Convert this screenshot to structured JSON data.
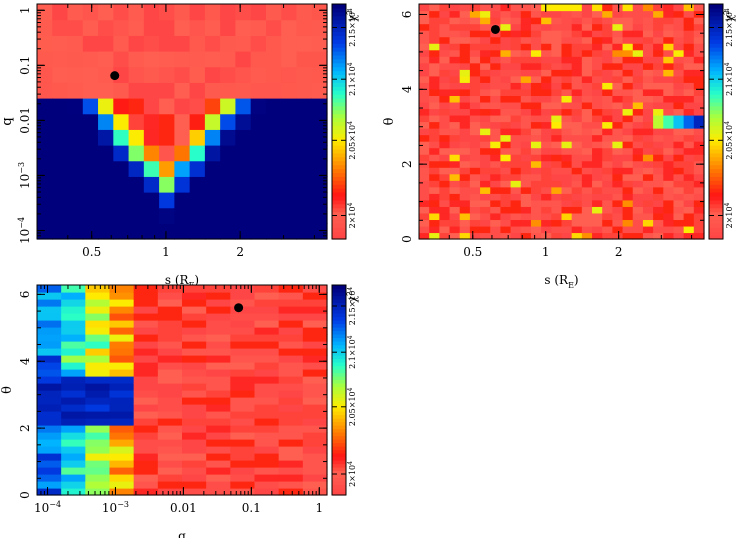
{
  "chart_data": [
    {
      "type": "heatmap",
      "xlabel": "s (R",
      "xlabel_sub": "E",
      "xlabel_close": ")",
      "ylabel": "q",
      "x_scale": "log",
      "y_scale": "log",
      "x_range": [
        0.3,
        4.5
      ],
      "y_range": [
        7e-05,
        1.3
      ],
      "x_ticks": [
        {
          "v": 0.5,
          "label": "0.5"
        },
        {
          "v": 1,
          "label": "1"
        },
        {
          "v": 2,
          "label": "2"
        }
      ],
      "y_ticks": [
        {
          "v": 0.0001,
          "label": "10",
          "sup": "−4"
        },
        {
          "v": 0.001,
          "label": "10",
          "sup": "−3"
        },
        {
          "v": 0.01,
          "label": "0.01"
        },
        {
          "v": 0.1,
          "label": "0.1"
        },
        {
          "v": 1,
          "label": "1"
        }
      ],
      "grid": {
        "nx": 19,
        "ny": 15,
        "model": "s-q"
      },
      "best_fit": {
        "x": 0.62,
        "y": 0.065
      },
      "colorbar": {
        "label": "χ",
        "label_sup": "2",
        "ticks": [
          {
            "label": "2×10",
            "sup": "4",
            "v": 0.1
          },
          {
            "label": "2.05×10",
            "sup": "4",
            "v": 0.42
          },
          {
            "label": "2.1×10",
            "sup": "4",
            "v": 0.68
          },
          {
            "label": "2.15×10",
            "sup": "4",
            "v": 0.9
          }
        ]
      }
    },
    {
      "type": "heatmap",
      "xlabel": "s (R",
      "xlabel_sub": "E",
      "xlabel_close": ")",
      "ylabel": "θ",
      "x_scale": "log",
      "y_scale": "linear",
      "x_range": [
        0.3,
        4.5
      ],
      "y_range": [
        0,
        6.28
      ],
      "x_ticks": [
        {
          "v": 0.5,
          "label": "0.5"
        },
        {
          "v": 1,
          "label": "1"
        },
        {
          "v": 2,
          "label": "2"
        }
      ],
      "y_ticks": [
        {
          "v": 0,
          "label": "0"
        },
        {
          "v": 2,
          "label": "2"
        },
        {
          "v": 4,
          "label": "4"
        },
        {
          "v": 6,
          "label": "6"
        }
      ],
      "grid": {
        "nx": 28,
        "ny": 36,
        "model": "s-theta"
      },
      "best_fit": {
        "x": 0.62,
        "y": 5.6
      },
      "colorbar": {
        "label": "χ",
        "label_sup": "2",
        "ticks": [
          {
            "label": "2×10",
            "sup": "4",
            "v": 0.1
          },
          {
            "label": "2.05×10",
            "sup": "4",
            "v": 0.42
          },
          {
            "label": "2.1×10",
            "sup": "4",
            "v": 0.68
          },
          {
            "label": "2.15×10",
            "sup": "4",
            "v": 0.9
          }
        ]
      }
    },
    {
      "type": "heatmap",
      "xlabel": "q",
      "xlabel_sub": "",
      "xlabel_close": "",
      "ylabel": "θ",
      "x_scale": "log",
      "y_scale": "linear",
      "x_range": [
        7e-05,
        1.3
      ],
      "y_range": [
        0,
        6.28
      ],
      "x_ticks": [
        {
          "v": 0.0001,
          "label": "10",
          "sup": "−4"
        },
        {
          "v": 0.001,
          "label": "10",
          "sup": "−3"
        },
        {
          "v": 0.01,
          "label": "0.01"
        },
        {
          "v": 0.1,
          "label": "0.1"
        },
        {
          "v": 1,
          "label": "1"
        }
      ],
      "y_ticks": [
        {
          "v": 0,
          "label": "0"
        },
        {
          "v": 2,
          "label": "2"
        },
        {
          "v": 4,
          "label": "4"
        },
        {
          "v": 6,
          "label": "6"
        }
      ],
      "grid": {
        "nx": 12,
        "ny": 30,
        "model": "q-theta"
      },
      "best_fit": {
        "x": 0.065,
        "y": 5.6
      },
      "colorbar": {
        "label": "χ",
        "label_sup": "2",
        "ticks": [
          {
            "label": "2×10",
            "sup": "4",
            "v": 0.1
          },
          {
            "label": "2.05×10",
            "sup": "4",
            "v": 0.42
          },
          {
            "label": "2.1×10",
            "sup": "4",
            "v": 0.68
          },
          {
            "label": "2.15×10",
            "sup": "4",
            "v": 0.9
          }
        ]
      }
    }
  ]
}
